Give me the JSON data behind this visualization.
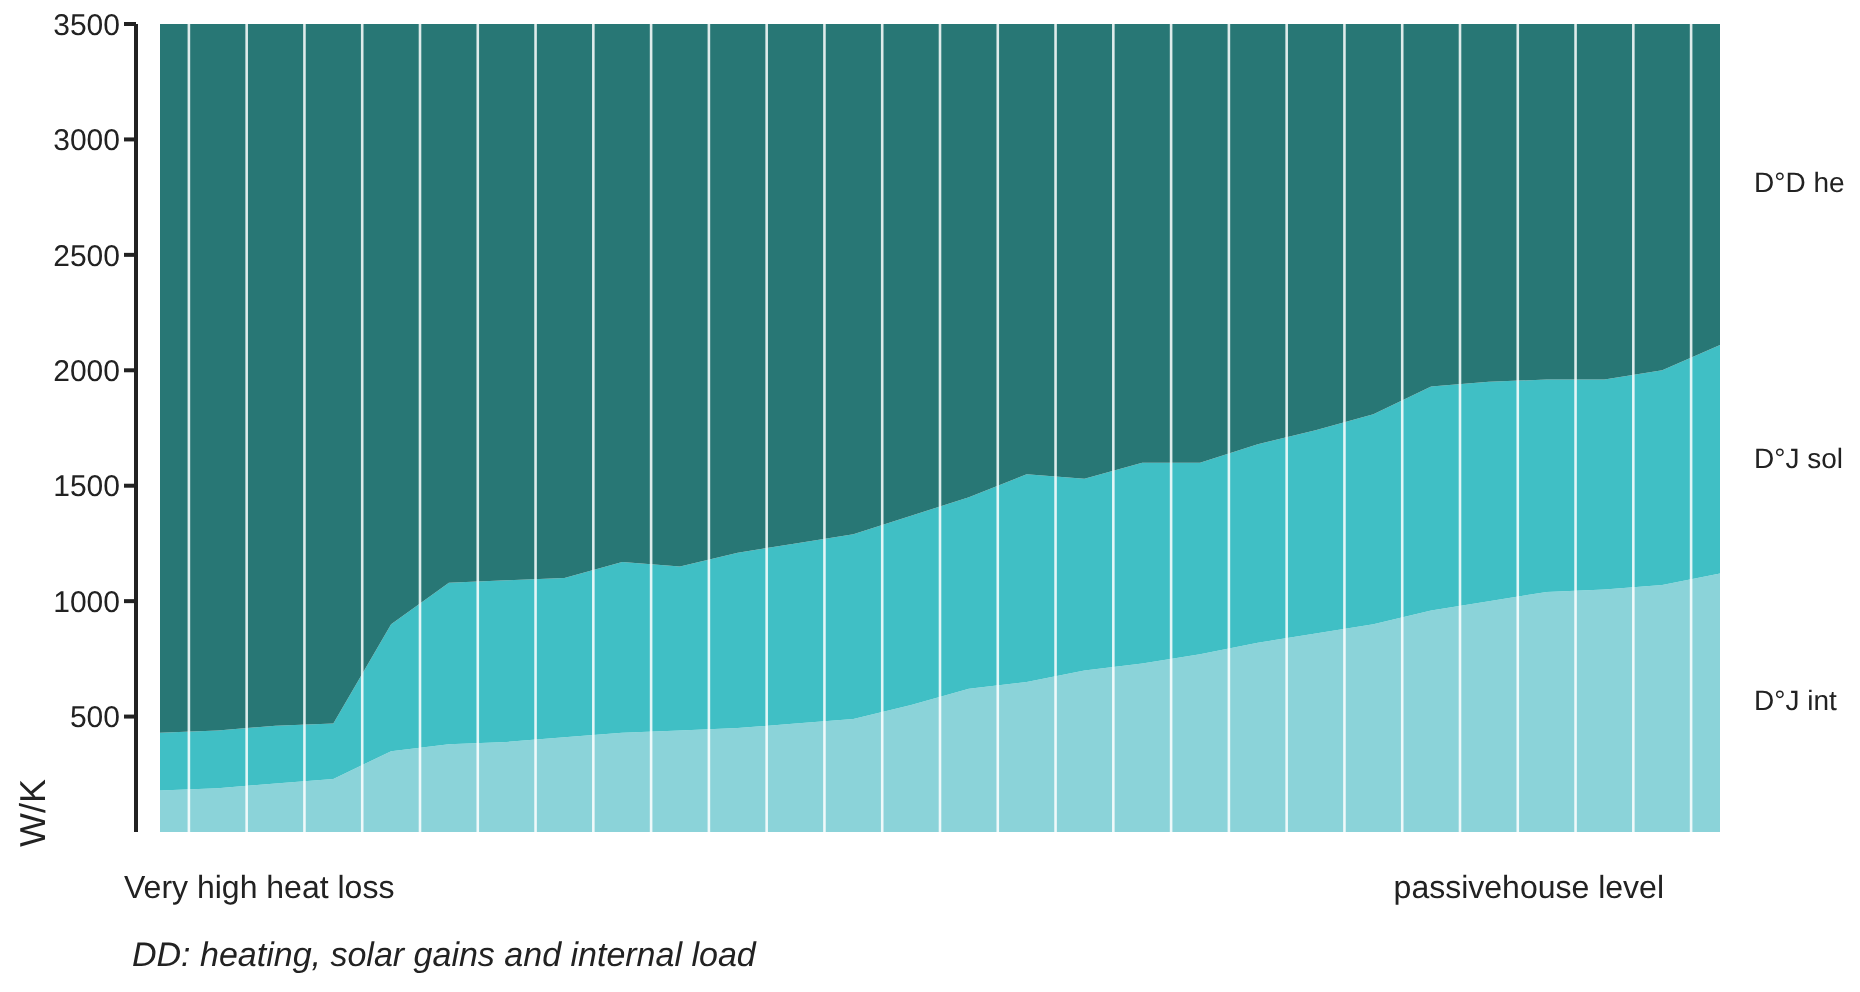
{
  "chart_data": {
    "type": "area",
    "stacked": true,
    "title": "DD: heating, solar gains and internal load",
    "ylabel": "W/K",
    "annotations": [
      "Very high heat loss",
      "passivehouse level"
    ],
    "categories": [
      null,
      null,
      null,
      null,
      null,
      null,
      null,
      null,
      null,
      null,
      null,
      null,
      null,
      null,
      null,
      null,
      null,
      null,
      null,
      null,
      null,
      null,
      null,
      null,
      null,
      null,
      null,
      null
    ],
    "series": [
      {
        "name": "D°J int",
        "color": "#8bd3d9",
        "values": [
          180,
          190,
          210,
          230,
          350,
          380,
          390,
          410,
          430,
          440,
          450,
          470,
          490,
          550,
          620,
          650,
          700,
          730,
          770,
          820,
          860,
          900,
          960,
          1000,
          1040,
          1050,
          1070,
          1120
        ]
      },
      {
        "name": "D°J sol",
        "color": "#40bfc5",
        "values": [
          250,
          250,
          250,
          240,
          550,
          700,
          700,
          690,
          740,
          710,
          760,
          780,
          800,
          820,
          830,
          900,
          830,
          870,
          830,
          860,
          880,
          910,
          970,
          950,
          920,
          910,
          930,
          990
        ]
      },
      {
        "name": "D°D he",
        "color": "#287775",
        "values": [
          3070,
          3060,
          3040,
          3030,
          2600,
          2420,
          2410,
          2400,
          2330,
          2350,
          2290,
          2250,
          2210,
          2130,
          2050,
          1950,
          1970,
          1900,
          1900,
          1820,
          1760,
          1690,
          1570,
          1550,
          1540,
          1540,
          1500,
          1390
        ]
      }
    ],
    "ylim": [
      0,
      3500
    ],
    "yticks": [
      500,
      1000,
      1500,
      2000,
      2500,
      3000,
      3500
    ],
    "grid": "x"
  }
}
